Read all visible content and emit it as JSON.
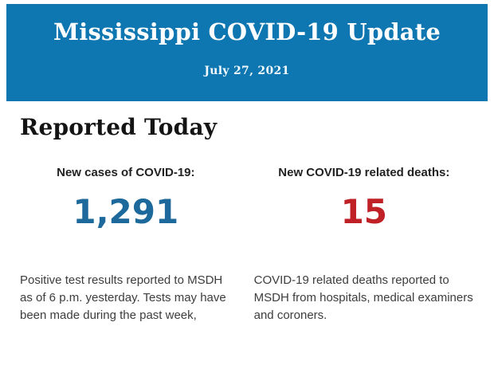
{
  "header": {
    "title": "Mississippi COVID-19 Update",
    "date": "July 27, 2021",
    "background_color": "#0e76b1",
    "text_color": "#ffffff"
  },
  "section": {
    "title": "Reported Today"
  },
  "stats": [
    {
      "label": "New cases of COVID-19:",
      "value": "1,291",
      "value_color": "#1d699c",
      "description": "Positive test results reported to MSDH as of 6 p.m. yesterday. Tests may have been made during the past week,"
    },
    {
      "label": "New COVID-19 related deaths:",
      "value": "15",
      "value_color": "#bf2126",
      "description": "COVID-19 related deaths reported to MSDH from hospitals, medical examiners and coroners."
    }
  ],
  "colors": {
    "banner_blue": "#0e76b1",
    "cases_blue": "#1d699c",
    "deaths_red": "#bf2126",
    "body_text": "#3d3d3d",
    "heading_black": "#141414",
    "page_background": "#ffffff"
  }
}
